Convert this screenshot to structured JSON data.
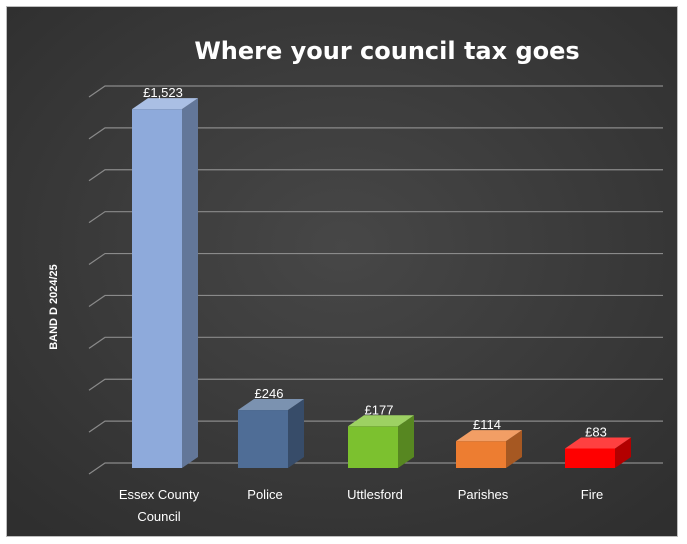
{
  "chart_data": {
    "type": "bar",
    "title": "Where your council tax goes",
    "ylabel": "BAND D 2024/25",
    "xlabel": "",
    "categories": [
      "Essex County Council",
      "Police",
      "Uttlesford",
      "Parishes",
      "Fire"
    ],
    "category_lines": [
      [
        "Essex County",
        "Council"
      ],
      [
        "Police"
      ],
      [
        "Uttlesford"
      ],
      [
        "Parishes"
      ],
      [
        "Fire"
      ]
    ],
    "values": [
      1523,
      246,
      177,
      114,
      83
    ],
    "data_labels": [
      "£1,523",
      "£246",
      "£177",
      "£114",
      "£83"
    ],
    "colors": [
      "#8eaadb",
      "#4f6d96",
      "#7cc12f",
      "#ed7d31",
      "#ff0000"
    ],
    "ylim": [
      0,
      1600
    ],
    "gridlines": true,
    "legend": "none",
    "style": "3d-column",
    "background": "#3b3b3b",
    "grid_color": "#8a8a8a"
  }
}
